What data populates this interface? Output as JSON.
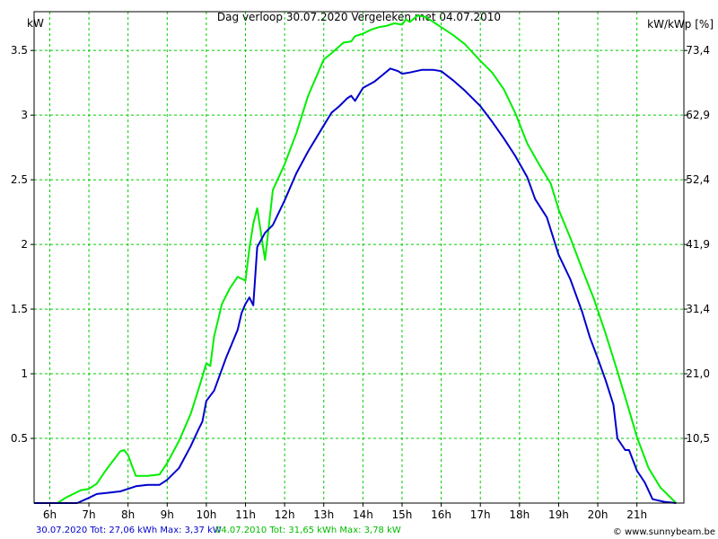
{
  "chart_data": {
    "type": "line",
    "title": "Dag  verloop 30.07.2020   Vergeleken met 04.07.2010",
    "ylabel_left": "kW",
    "ylabel_right": "kW/kWp [%]",
    "ylim": [
      0,
      3.8
    ],
    "xlim": [
      5.6,
      22.2
    ],
    "grid": true,
    "x_tick_labels": [
      "6h",
      "7h",
      "8h",
      "9h",
      "10h",
      "11h",
      "12h",
      "13h",
      "14h",
      "15h",
      "16h",
      "17h",
      "18h",
      "19h",
      "20h",
      "21h"
    ],
    "y_left_ticks": [
      {
        "value": 0.5,
        "label": "0.5"
      },
      {
        "value": 1,
        "label": "1"
      },
      {
        "value": 1.5,
        "label": "1.5"
      },
      {
        "value": 2,
        "label": "2"
      },
      {
        "value": 2.5,
        "label": "2.5"
      },
      {
        "value": 3,
        "label": "3"
      },
      {
        "value": 3.5,
        "label": "3.5"
      }
    ],
    "y_right_ticks": [
      {
        "value": 0.5,
        "label": "10,5"
      },
      {
        "value": 1,
        "label": "21,0"
      },
      {
        "value": 1.5,
        "label": "31,4"
      },
      {
        "value": 2,
        "label": "41,9"
      },
      {
        "value": 2.5,
        "label": "52,4"
      },
      {
        "value": 3,
        "label": "62,9"
      },
      {
        "value": 3.5,
        "label": "73,4"
      }
    ],
    "series": [
      {
        "name": "30.07.2020",
        "color": "#0000cc",
        "x": [
          5.6,
          6.7,
          7.0,
          7.2,
          7.5,
          7.8,
          8.0,
          8.2,
          8.5,
          8.8,
          9.0,
          9.3,
          9.6,
          9.8,
          9.9,
          10.0,
          10.2,
          10.5,
          10.8,
          10.9,
          11.0,
          11.1,
          11.2,
          11.3,
          11.5,
          11.7,
          12.0,
          12.3,
          12.6,
          13.0,
          13.2,
          13.4,
          13.6,
          13.7,
          13.8,
          14.0,
          14.3,
          14.5,
          14.7,
          14.9,
          15.0,
          15.2,
          15.5,
          15.8,
          16.0,
          16.3,
          16.6,
          17.0,
          17.3,
          17.6,
          17.9,
          18.2,
          18.4,
          18.7,
          19.0,
          19.3,
          19.6,
          19.8,
          20.0,
          20.2,
          20.4,
          20.5,
          20.7,
          20.8,
          21.0,
          21.2,
          21.4,
          21.7,
          22.0
        ],
        "values": [
          0,
          0,
          0.04,
          0.07,
          0.08,
          0.09,
          0.11,
          0.13,
          0.14,
          0.14,
          0.18,
          0.27,
          0.44,
          0.57,
          0.63,
          0.79,
          0.87,
          1.12,
          1.34,
          1.47,
          1.54,
          1.59,
          1.53,
          1.98,
          2.09,
          2.15,
          2.34,
          2.55,
          2.72,
          2.92,
          3.02,
          3.07,
          3.13,
          3.15,
          3.11,
          3.21,
          3.26,
          3.31,
          3.36,
          3.34,
          3.32,
          3.33,
          3.35,
          3.35,
          3.34,
          3.27,
          3.19,
          3.07,
          2.95,
          2.82,
          2.68,
          2.52,
          2.35,
          2.21,
          1.92,
          1.73,
          1.48,
          1.28,
          1.12,
          0.95,
          0.76,
          0.5,
          0.41,
          0.41,
          0.25,
          0.16,
          0.03,
          0.01,
          0
        ]
      },
      {
        "name": "04.07.2010",
        "color": "#00ee00",
        "x": [
          5.6,
          6.2,
          6.4,
          6.6,
          6.8,
          7.0,
          7.2,
          7.4,
          7.6,
          7.8,
          7.9,
          8.0,
          8.1,
          8.2,
          8.5,
          8.8,
          9.0,
          9.3,
          9.6,
          9.8,
          10.0,
          10.1,
          10.2,
          10.4,
          10.6,
          10.8,
          11.0,
          11.1,
          11.2,
          11.3,
          11.5,
          11.7,
          12.0,
          12.3,
          12.6,
          13.0,
          13.2,
          13.5,
          13.7,
          13.8,
          14.0,
          14.2,
          14.4,
          14.6,
          14.8,
          15.0,
          15.1,
          15.2,
          15.4,
          15.6,
          15.8,
          16.0,
          16.3,
          16.6,
          17.0,
          17.3,
          17.6,
          17.9,
          18.2,
          18.5,
          18.8,
          19.0,
          19.3,
          19.6,
          19.9,
          20.2,
          20.5,
          20.8,
          21.0,
          21.3,
          21.6,
          22.0
        ],
        "values": [
          0,
          0,
          0.04,
          0.07,
          0.1,
          0.11,
          0.15,
          0.24,
          0.32,
          0.4,
          0.41,
          0.37,
          0.29,
          0.21,
          0.21,
          0.22,
          0.31,
          0.48,
          0.69,
          0.88,
          1.08,
          1.06,
          1.29,
          1.54,
          1.66,
          1.75,
          1.72,
          1.97,
          2.16,
          2.28,
          1.88,
          2.42,
          2.62,
          2.86,
          3.15,
          3.43,
          3.48,
          3.56,
          3.57,
          3.61,
          3.63,
          3.66,
          3.68,
          3.69,
          3.71,
          3.7,
          3.74,
          3.72,
          3.77,
          3.76,
          3.72,
          3.68,
          3.62,
          3.55,
          3.42,
          3.33,
          3.2,
          3.01,
          2.78,
          2.62,
          2.47,
          2.27,
          2.05,
          1.81,
          1.58,
          1.31,
          1.02,
          0.72,
          0.51,
          0.27,
          0.12,
          0
        ]
      }
    ],
    "footer": {
      "series1_text": "30.07.2020 Tot: 27,06 kWh Max: 3,37 kW",
      "series2_text": "04.07.2010 Tot: 31,65 kWh Max: 3,78 kW",
      "credit": "© www.sunnybeam.be"
    }
  }
}
